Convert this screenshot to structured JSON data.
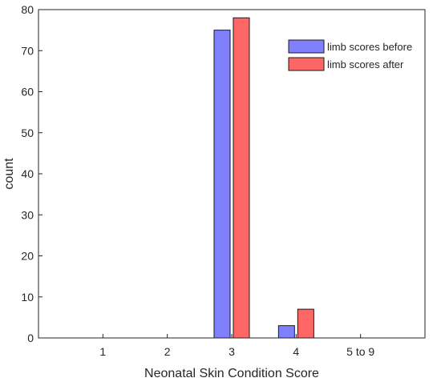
{
  "chart_data": {
    "type": "bar",
    "xlabel": "Neonatal Skin Condition Score",
    "ylabel": "count",
    "categories": [
      "1",
      "2",
      "3",
      "4",
      "5 to 9"
    ],
    "ylim": [
      0,
      80
    ],
    "yticks": [
      0,
      10,
      20,
      30,
      40,
      50,
      60,
      70,
      80
    ],
    "grid": false,
    "legend_position": "top-right",
    "series": [
      {
        "name": "limb scores before",
        "color": "#8080ff",
        "values": [
          0,
          0,
          75,
          3,
          0
        ]
      },
      {
        "name": "limb scores after",
        "color": "#ff6666",
        "values": [
          0,
          0,
          78,
          7,
          0
        ]
      }
    ]
  }
}
